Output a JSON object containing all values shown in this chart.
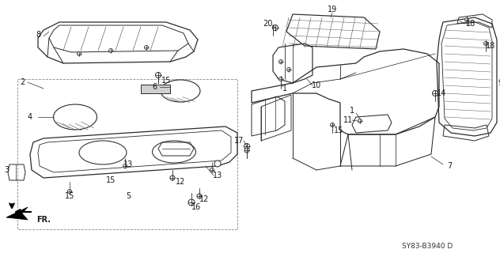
{
  "background_color": "#ffffff",
  "line_color": "#2a2a2a",
  "text_color": "#1a1a1a",
  "diagram_ref": "SY83-B3940 D",
  "figsize": [
    6.32,
    3.2
  ],
  "dpi": 100
}
